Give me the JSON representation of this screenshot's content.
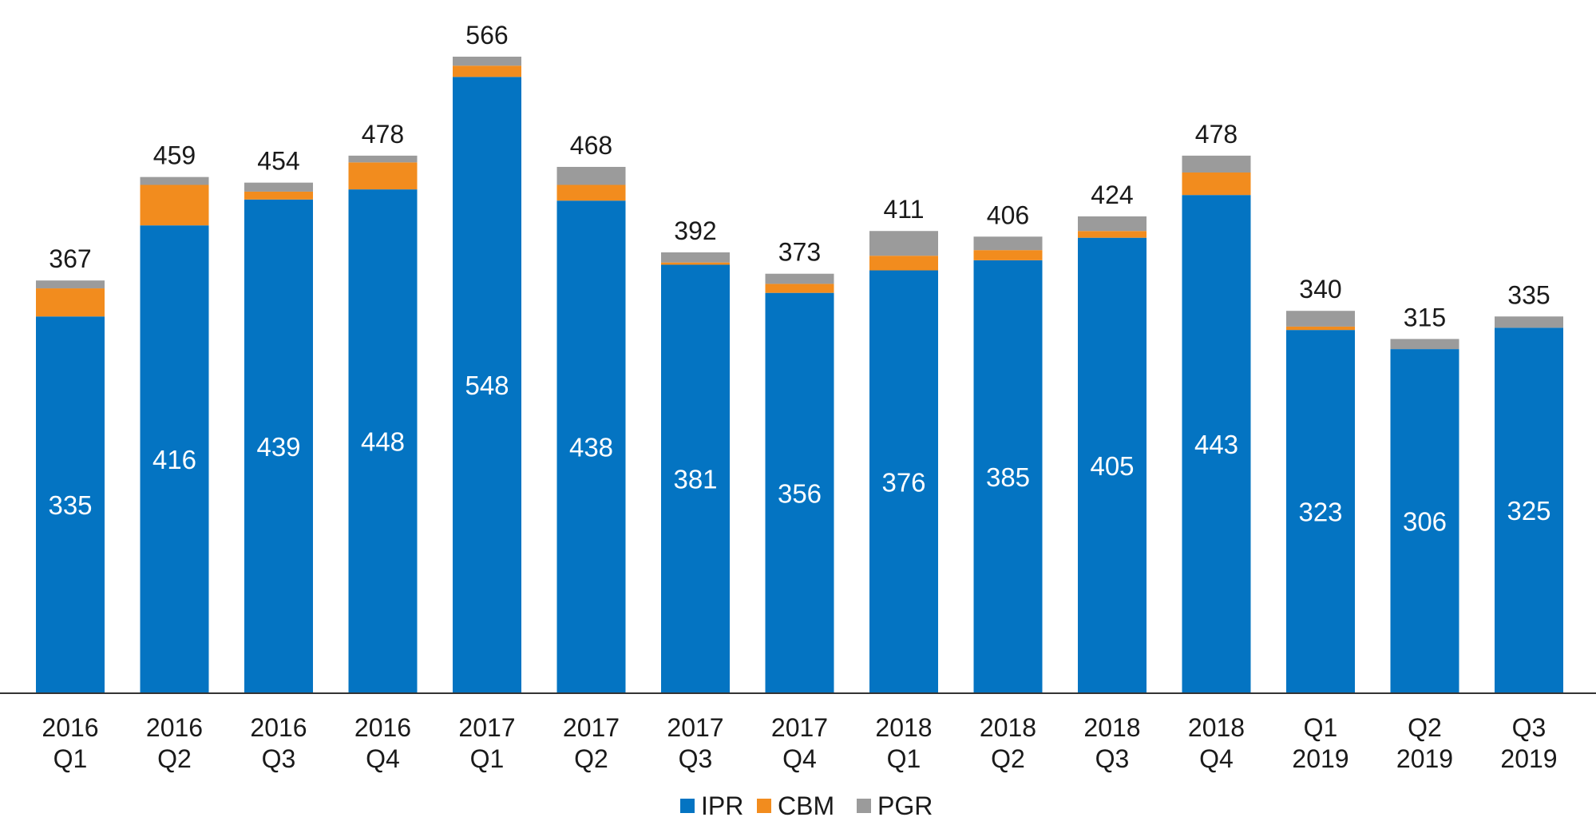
{
  "chart_data": {
    "type": "bar",
    "stacked": true,
    "categories": [
      [
        "2016",
        "Q1"
      ],
      [
        "2016",
        "Q2"
      ],
      [
        "2016",
        "Q3"
      ],
      [
        "2016",
        "Q4"
      ],
      [
        "2017",
        "Q1"
      ],
      [
        "2017",
        "Q2"
      ],
      [
        "2017",
        "Q3"
      ],
      [
        "2017",
        "Q4"
      ],
      [
        "2018",
        "Q1"
      ],
      [
        "2018",
        "Q2"
      ],
      [
        "2018",
        "Q3"
      ],
      [
        "2018",
        "Q4"
      ],
      [
        "Q1",
        "2019"
      ],
      [
        "Q2",
        "2019"
      ],
      [
        "Q3",
        "2019"
      ]
    ],
    "series": [
      {
        "name": "IPR",
        "color": "#0474C2",
        "values": [
          335,
          416,
          439,
          448,
          548,
          438,
          381,
          356,
          376,
          385,
          405,
          443,
          323,
          306,
          325
        ]
      },
      {
        "name": "CBM",
        "color": "#F28C1E",
        "values": [
          25,
          36,
          7,
          24,
          10,
          14,
          2,
          8,
          13,
          9,
          6,
          20,
          3,
          0,
          0
        ]
      },
      {
        "name": "PGR",
        "color": "#9B9B9B",
        "values": [
          7,
          7,
          8,
          6,
          8,
          16,
          9,
          9,
          22,
          12,
          13,
          15,
          14,
          9,
          10
        ]
      }
    ],
    "totals": [
      367,
      459,
      454,
      478,
      566,
      468,
      392,
      373,
      411,
      406,
      424,
      478,
      340,
      315,
      335
    ],
    "ylim": [
      0,
      600
    ],
    "grid": false,
    "legend_position": "bottom-center",
    "title": "",
    "xlabel": "",
    "ylabel": ""
  }
}
